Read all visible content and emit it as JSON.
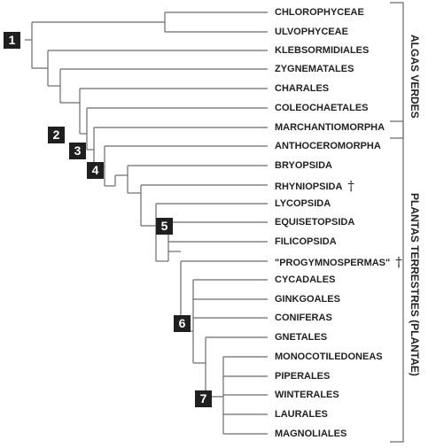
{
  "taxa": [
    {
      "name": "CHLOROPHYCEAE"
    },
    {
      "name": "ULVOPHYCEAE"
    },
    {
      "name": "KLEBSORMIDIALES"
    },
    {
      "name": "ZYGNEMATALES"
    },
    {
      "name": "CHARALES"
    },
    {
      "name": "COLEOCHAETALES"
    },
    {
      "name": "MARCHANTIOMORPHA"
    },
    {
      "name": "ANTHOCEROMORPHA"
    },
    {
      "name": "BRYOPSIDA"
    },
    {
      "name": "RHYNIOPSIDA",
      "extinct": "†"
    },
    {
      "name": "LYCOPSIDA"
    },
    {
      "name": "EQUISETOPSIDA"
    },
    {
      "name": "FILICOPSIDA"
    },
    {
      "name": "\"PROGYMNOSPERMAS\"",
      "extinct": "†"
    },
    {
      "name": "CYCADALES"
    },
    {
      "name": "GINKGOALES"
    },
    {
      "name": "CONIFERAS"
    },
    {
      "name": "GNETALES"
    },
    {
      "name": "MONOCOTILEDONEAS"
    },
    {
      "name": "PIPERALES"
    },
    {
      "name": "WINTERALES"
    },
    {
      "name": "LAURALES"
    },
    {
      "name": "MAGNOLIALES"
    }
  ],
  "nodes": [
    {
      "label": "1"
    },
    {
      "label": "2"
    },
    {
      "label": "3"
    },
    {
      "label": "4"
    },
    {
      "label": "5"
    },
    {
      "label": "6"
    },
    {
      "label": "7"
    }
  ],
  "groups": {
    "algas": "ALGAS VERDES",
    "plantas": "PLANTAS TERRESTRES (PLANTAE)"
  },
  "colors": {
    "line": "#6a6a6a",
    "badge": "#1f1f1f",
    "text": "#222222"
  }
}
